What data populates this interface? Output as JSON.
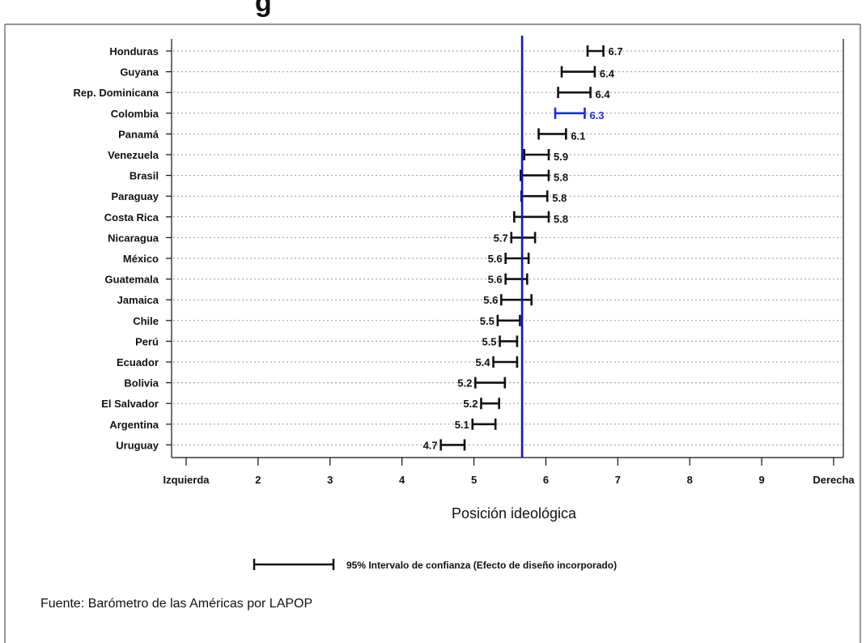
{
  "chart_data": {
    "type": "errorbar",
    "title_partial": "g",
    "xlabel": "Posición ideológica",
    "xlim": [
      1,
      10
    ],
    "x_ticks": [
      {
        "value": 1,
        "label": "Izquierda"
      },
      {
        "value": 2,
        "label": "2"
      },
      {
        "value": 3,
        "label": "3"
      },
      {
        "value": 4,
        "label": "4"
      },
      {
        "value": 5,
        "label": "5"
      },
      {
        "value": 6,
        "label": "6"
      },
      {
        "value": 7,
        "label": "7"
      },
      {
        "value": 8,
        "label": "8"
      },
      {
        "value": 9,
        "label": "9"
      },
      {
        "value": 10,
        "label": "Derecha"
      }
    ],
    "reference_line": {
      "value": 5.67,
      "color": "#1010e0"
    },
    "grid": "dotted horizontal",
    "default_color": "#111111",
    "highlight_color": "#1a2fe0",
    "series": [
      {
        "country": "Honduras",
        "value": 6.7,
        "label": "6.7",
        "ci_low": 6.58,
        "ci_high": 6.8,
        "highlight": false
      },
      {
        "country": "Guyana",
        "value": 6.4,
        "label": "6.4",
        "ci_low": 6.22,
        "ci_high": 6.68,
        "highlight": false
      },
      {
        "country": "Rep. Dominicana",
        "value": 6.4,
        "label": "6.4",
        "ci_low": 6.17,
        "ci_high": 6.62,
        "highlight": false
      },
      {
        "country": "Colombia",
        "value": 6.3,
        "label": "6.3",
        "ci_low": 6.13,
        "ci_high": 6.54,
        "highlight": true
      },
      {
        "country": "Panamá",
        "value": 6.1,
        "label": "6.1",
        "ci_low": 5.9,
        "ci_high": 6.28,
        "highlight": false
      },
      {
        "country": "Venezuela",
        "value": 5.9,
        "label": "5.9",
        "ci_low": 5.7,
        "ci_high": 6.04,
        "highlight": false
      },
      {
        "country": "Brasil",
        "value": 5.8,
        "label": "5.8",
        "ci_low": 5.65,
        "ci_high": 6.04,
        "highlight": false
      },
      {
        "country": "Paraguay",
        "value": 5.8,
        "label": "5.8",
        "ci_low": 5.66,
        "ci_high": 6.02,
        "highlight": false
      },
      {
        "country": "Costa Rica",
        "value": 5.8,
        "label": "5.8",
        "ci_low": 5.56,
        "ci_high": 6.04,
        "highlight": false
      },
      {
        "country": "Nicaragua",
        "value": 5.7,
        "label": "5.7",
        "ci_low": 5.52,
        "ci_high": 5.85,
        "highlight": false
      },
      {
        "country": "México",
        "value": 5.6,
        "label": "5.6",
        "ci_low": 5.44,
        "ci_high": 5.76,
        "highlight": false
      },
      {
        "country": "Guatemala",
        "value": 5.6,
        "label": "5.6",
        "ci_low": 5.44,
        "ci_high": 5.74,
        "highlight": false
      },
      {
        "country": "Jamaica",
        "value": 5.6,
        "label": "5.6",
        "ci_low": 5.38,
        "ci_high": 5.8,
        "highlight": false
      },
      {
        "country": "Chile",
        "value": 5.5,
        "label": "5.5",
        "ci_low": 5.33,
        "ci_high": 5.64,
        "highlight": false
      },
      {
        "country": "Perú",
        "value": 5.5,
        "label": "5.5",
        "ci_low": 5.36,
        "ci_high": 5.6,
        "highlight": false
      },
      {
        "country": "Ecuador",
        "value": 5.4,
        "label": "5.4",
        "ci_low": 5.27,
        "ci_high": 5.6,
        "highlight": false
      },
      {
        "country": "Bolivia",
        "value": 5.2,
        "label": "5.2",
        "ci_low": 5.02,
        "ci_high": 5.43,
        "highlight": false
      },
      {
        "country": "El Salvador",
        "value": 5.2,
        "label": "5.2",
        "ci_low": 5.1,
        "ci_high": 5.35,
        "highlight": false
      },
      {
        "country": "Argentina",
        "value": 5.1,
        "label": "5.1",
        "ci_low": 4.98,
        "ci_high": 5.3,
        "highlight": false
      },
      {
        "country": "Uruguay",
        "value": 4.7,
        "label": "4.7",
        "ci_low": 4.54,
        "ci_high": 4.87,
        "highlight": false
      }
    ]
  },
  "legend": {
    "label": "95% Intervalo de confianza (Efecto de diseño incorporado)"
  },
  "source": {
    "text": "Fuente: Barómetro de las Américas por LAPOP"
  }
}
